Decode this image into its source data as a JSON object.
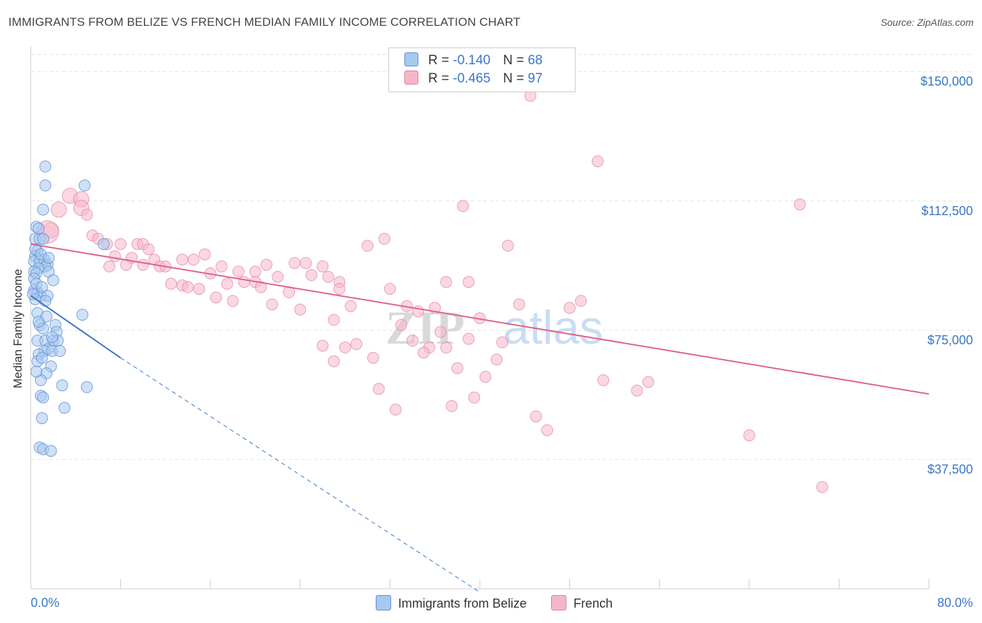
{
  "title": "IMMIGRANTS FROM BELIZE VS FRENCH MEDIAN FAMILY INCOME CORRELATION CHART",
  "source": "Source: ZipAtlas.com",
  "legend": {
    "rows": [
      {
        "r_label": "R = ",
        "r_value": "-0.140",
        "n_label": "N = ",
        "n_value": "68",
        "color": "#a9c8ef"
      },
      {
        "r_label": "R = ",
        "r_value": "-0.465",
        "n_label": "N = ",
        "n_value": "97",
        "color": "#f5b6c9"
      }
    ]
  },
  "bottom_legend": {
    "series1": "Immigrants from Belize",
    "series2": "French"
  },
  "watermark": {
    "part1": "ZIP",
    "part2": "atlas"
  },
  "chart_data": {
    "type": "scatter",
    "title": "IMMIGRANTS FROM BELIZE VS FRENCH MEDIAN FAMILY INCOME CORRELATION CHART",
    "xlabel": "",
    "ylabel": "Median Family Income",
    "xlim": [
      0,
      80
    ],
    "ylim": [
      0,
      155000
    ],
    "x_tick_labels": [
      "0.0%",
      "80.0%"
    ],
    "y_ticks": [
      37500,
      75000,
      112500,
      150000
    ],
    "y_tick_labels": [
      "$37,500",
      "$75,000",
      "$112,500",
      "$150,000"
    ],
    "colors": {
      "belize_fill": "#a9c8ef",
      "belize_stroke": "#5b8fd6",
      "french_fill": "#f5b6c9",
      "french_stroke": "#e07fa0",
      "belize_line": "#3a76c8",
      "french_line": "#e0628e"
    },
    "series": [
      {
        "name": "Immigrants from Belize",
        "r": -0.14,
        "n": 68,
        "trend": {
          "x0": 0,
          "y0": 85000,
          "x1": 8,
          "y1": 67000,
          "dashed_to_x": 40,
          "dashed_to_y": -1000
        },
        "points": [
          [
            1.3,
            122500
          ],
          [
            1.3,
            117000
          ],
          [
            4.8,
            117000
          ],
          [
            1.1,
            110000
          ],
          [
            0.5,
            105000
          ],
          [
            0.7,
            104500
          ],
          [
            0.4,
            101500
          ],
          [
            0.8,
            101500
          ],
          [
            1.1,
            101500
          ],
          [
            6.5,
            100000
          ],
          [
            0.6,
            98000
          ],
          [
            0.4,
            96500
          ],
          [
            1.2,
            95500
          ],
          [
            0.3,
            95000
          ],
          [
            0.8,
            95000
          ],
          [
            1.5,
            94000
          ],
          [
            1.3,
            93500
          ],
          [
            0.7,
            93000
          ],
          [
            0.3,
            92000
          ],
          [
            1.6,
            92000
          ],
          [
            0.5,
            91500
          ],
          [
            0.3,
            90000
          ],
          [
            2.0,
            89500
          ],
          [
            0.3,
            86500
          ],
          [
            0.6,
            86000
          ],
          [
            0.9,
            85000
          ],
          [
            1.5,
            85000
          ],
          [
            0.4,
            84000
          ],
          [
            1.3,
            83500
          ],
          [
            0.6,
            80000
          ],
          [
            4.6,
            79500
          ],
          [
            0.8,
            76500
          ],
          [
            2.2,
            76500
          ],
          [
            1.1,
            75500
          ],
          [
            2.3,
            74500
          ],
          [
            0.6,
            72000
          ],
          [
            1.3,
            72000
          ],
          [
            2.0,
            72000
          ],
          [
            2.4,
            72000
          ],
          [
            1.5,
            69500
          ],
          [
            1.2,
            69000
          ],
          [
            1.9,
            69000
          ],
          [
            2.6,
            69000
          ],
          [
            0.7,
            68000
          ],
          [
            0.6,
            66000
          ],
          [
            1.8,
            64500
          ],
          [
            1.4,
            62500
          ],
          [
            0.9,
            60500
          ],
          [
            2.8,
            59000
          ],
          [
            5.0,
            58500
          ],
          [
            0.9,
            56000
          ],
          [
            1.1,
            55500
          ],
          [
            3.0,
            52500
          ],
          [
            1.0,
            49500
          ],
          [
            0.8,
            41000
          ],
          [
            1.1,
            40500
          ],
          [
            1.8,
            40000
          ],
          [
            0.4,
            98500
          ],
          [
            0.9,
            97000
          ],
          [
            1.6,
            96000
          ],
          [
            0.5,
            88500
          ],
          [
            1.0,
            87500
          ],
          [
            0.2,
            85500
          ],
          [
            1.4,
            79000
          ],
          [
            0.7,
            77500
          ],
          [
            1.9,
            73000
          ],
          [
            1.0,
            67000
          ],
          [
            0.5,
            63000
          ]
        ]
      },
      {
        "name": "French",
        "r": -0.465,
        "n": 97,
        "trend": {
          "x0": 0,
          "y0": 100000,
          "x1": 80,
          "y1": 56500
        },
        "points": [
          [
            44.5,
            143000
          ],
          [
            50.5,
            124000
          ],
          [
            68.5,
            111500
          ],
          [
            38.5,
            111000
          ],
          [
            3.5,
            114000
          ],
          [
            4.5,
            113000
          ],
          [
            2.5,
            110000
          ],
          [
            4.5,
            110500
          ],
          [
            1.8,
            104000
          ],
          [
            5.0,
            108500
          ],
          [
            5.5,
            102500
          ],
          [
            6.0,
            101500
          ],
          [
            6.8,
            100000
          ],
          [
            8.0,
            100000
          ],
          [
            9.5,
            100000
          ],
          [
            10.0,
            100000
          ],
          [
            31.5,
            101500
          ],
          [
            30.0,
            99500
          ],
          [
            42.5,
            99500
          ],
          [
            10.5,
            98500
          ],
          [
            7.5,
            96500
          ],
          [
            9.0,
            96000
          ],
          [
            11.0,
            95500
          ],
          [
            13.5,
            95500
          ],
          [
            14.5,
            95500
          ],
          [
            15.5,
            97000
          ],
          [
            8.5,
            94000
          ],
          [
            10.0,
            94000
          ],
          [
            11.5,
            93500
          ],
          [
            12.0,
            93500
          ],
          [
            17.0,
            93500
          ],
          [
            21.0,
            94000
          ],
          [
            23.5,
            94500
          ],
          [
            24.5,
            94500
          ],
          [
            26.0,
            93500
          ],
          [
            7.0,
            93500
          ],
          [
            16.0,
            91500
          ],
          [
            20.0,
            92000
          ],
          [
            18.5,
            92000
          ],
          [
            22.0,
            90500
          ],
          [
            25.0,
            91000
          ],
          [
            26.5,
            90500
          ],
          [
            19.0,
            89000
          ],
          [
            20.0,
            89000
          ],
          [
            27.5,
            89000
          ],
          [
            17.5,
            88500
          ],
          [
            12.5,
            88500
          ],
          [
            13.5,
            88000
          ],
          [
            14.0,
            87500
          ],
          [
            15.0,
            87000
          ],
          [
            20.5,
            87500
          ],
          [
            23.0,
            86000
          ],
          [
            27.5,
            87000
          ],
          [
            32.0,
            87000
          ],
          [
            37.0,
            89000
          ],
          [
            39.0,
            89000
          ],
          [
            16.5,
            84500
          ],
          [
            18.0,
            83500
          ],
          [
            21.5,
            82500
          ],
          [
            28.5,
            82000
          ],
          [
            33.5,
            82000
          ],
          [
            34.5,
            80500
          ],
          [
            36.0,
            81500
          ],
          [
            40.0,
            78500
          ],
          [
            43.5,
            82500
          ],
          [
            48.0,
            81500
          ],
          [
            49.0,
            83500
          ],
          [
            24.0,
            81000
          ],
          [
            27.0,
            78000
          ],
          [
            33.0,
            76500
          ],
          [
            36.5,
            74500
          ],
          [
            34.0,
            72000
          ],
          [
            39.0,
            72500
          ],
          [
            42.0,
            71500
          ],
          [
            29.0,
            71000
          ],
          [
            26.0,
            70500
          ],
          [
            28.0,
            70000
          ],
          [
            35.5,
            70000
          ],
          [
            37.0,
            70000
          ],
          [
            35.0,
            68500
          ],
          [
            30.5,
            67000
          ],
          [
            27.0,
            66000
          ],
          [
            41.5,
            66500
          ],
          [
            38.0,
            64000
          ],
          [
            40.5,
            61500
          ],
          [
            51.0,
            60500
          ],
          [
            55.0,
            60000
          ],
          [
            31.0,
            58000
          ],
          [
            54.0,
            57500
          ],
          [
            39.5,
            55500
          ],
          [
            37.5,
            53000
          ],
          [
            32.5,
            52000
          ],
          [
            45.0,
            50000
          ],
          [
            46.0,
            46000
          ],
          [
            64.0,
            44500
          ],
          [
            70.5,
            29500
          ],
          [
            1.5,
            103500
          ]
        ]
      }
    ]
  }
}
